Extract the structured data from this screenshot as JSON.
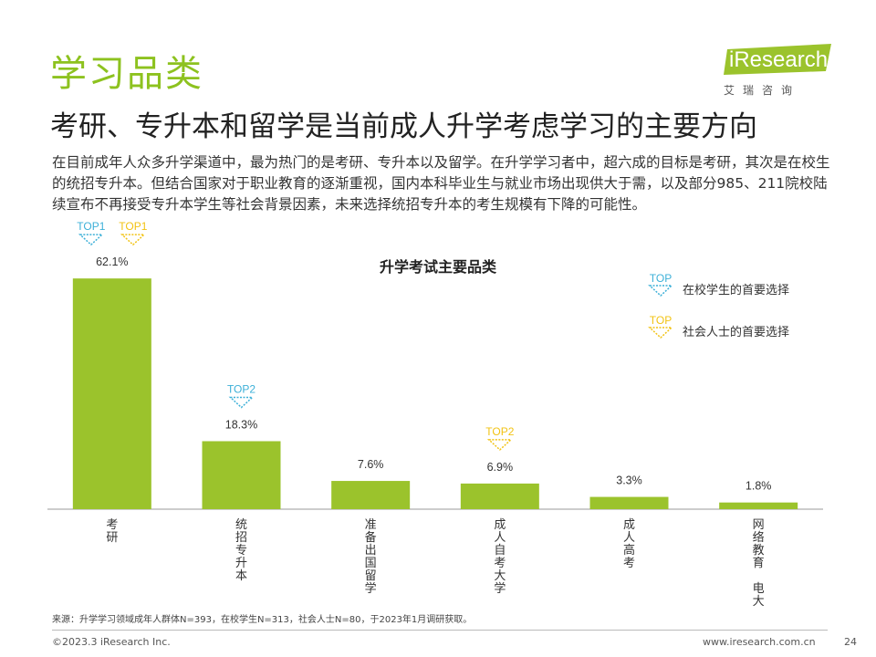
{
  "header": {
    "section_title": "学习品类",
    "headline": "考研、专升本和留学是当前成人升学考虑学习的主要方向",
    "body": "在目前成年人众多升学渠道中，最为热门的是考研、专升本以及留学。在升学学习者中，超六成的目标是考研，其次是在校生的统招专升本。但结合国家对于职业教育的逐渐重视，国内本科毕业生与就业市场出现供大于需，以及部分985、211院校陆续宣布不再接受专升本学生等社会背景因素，未来选择统招专升本的考生规模有下降的可能性。"
  },
  "logo": {
    "name": "iResearch",
    "sub": "艾瑞咨询"
  },
  "legend": {
    "student": {
      "badge": "TOP",
      "label": "在校学生的首要选择"
    },
    "adult": {
      "badge": "TOP",
      "label": "社会人士的首要选择"
    }
  },
  "chart_data": {
    "type": "bar",
    "title": "升学考试主要品类",
    "categories": [
      "考研",
      "统招专升本",
      "准备出国留学",
      "成人自考大学",
      "成人高考",
      "网络教育 电大"
    ],
    "values": [
      62.1,
      18.3,
      7.6,
      6.9,
      3.3,
      1.8
    ],
    "value_labels": [
      "62.1%",
      "18.3%",
      "7.6%",
      "6.9%",
      "3.3%",
      "1.8%"
    ],
    "unit": "%",
    "ylim": [
      0,
      70
    ],
    "grid": false,
    "legend_position": "top-right",
    "annotations": [
      {
        "category": "考研",
        "group": "student",
        "text": "TOP1"
      },
      {
        "category": "考研",
        "group": "adult",
        "text": "TOP1"
      },
      {
        "category": "统招专升本",
        "group": "student",
        "text": "TOP2"
      },
      {
        "category": "成人自考大学",
        "group": "adult",
        "text": "TOP2"
      }
    ],
    "colors": {
      "bar": "#9bc32c",
      "student_badge": "#3db0d8",
      "adult_badge": "#f2c314",
      "axis": "#999999"
    }
  },
  "footer": {
    "source": "来源：升学学习领域成年人群体N=393，在校学生N=313，社会人士N=80，于2023年1月调研获取。",
    "copyright": "©2023.3 iResearch Inc.",
    "site": "www.iresearch.com.cn",
    "page_number": "24"
  }
}
